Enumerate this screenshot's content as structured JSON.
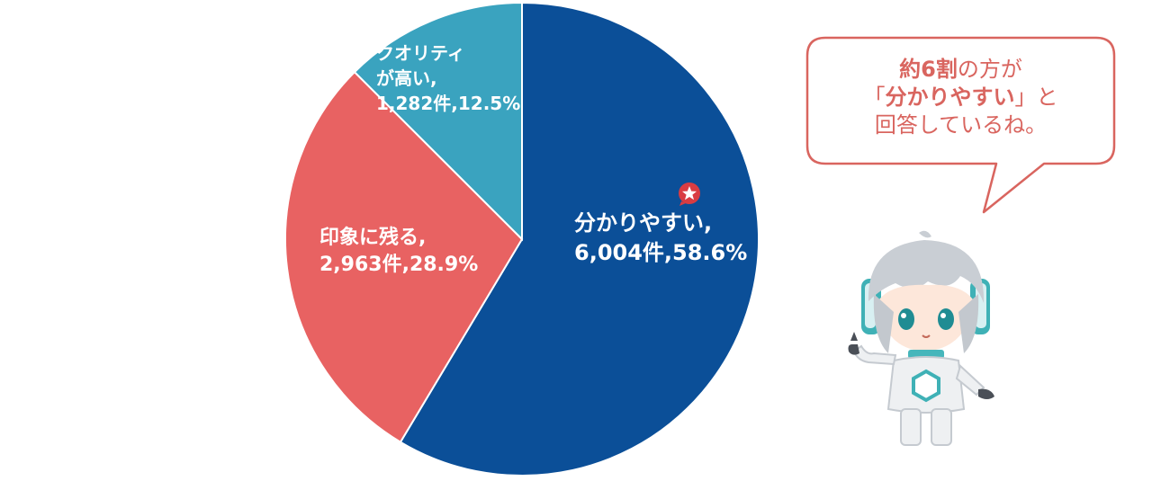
{
  "chart_data": {
    "type": "pie",
    "start_angle_deg": 0,
    "direction": "clockwise",
    "slices": [
      {
        "label": "分かりやすい",
        "count": 6004,
        "percent": 58.6,
        "count_text": "6,004件",
        "percent_text": "58.6%",
        "color": "#0b4f98"
      },
      {
        "label": "印象に残る",
        "count": 2963,
        "percent": 28.9,
        "count_text": "2,963件",
        "percent_text": "28.9%",
        "color": "#e86262"
      },
      {
        "label": "クオリティが高い",
        "count": 1282,
        "percent": 12.5,
        "count_text": "1,282件",
        "percent_text": "12.5%",
        "color": "#3aa3bf"
      }
    ],
    "data_labels": {
      "wakari": {
        "line1": "分かりやすい,",
        "line2": "6,004件,58.6%"
      },
      "insho": {
        "line1": "印象に残る,",
        "line2": "2,963件,28.9%"
      },
      "quality": {
        "line1": "クオリティ",
        "line2": "が高い,",
        "line3": "1,282件,12.5%"
      }
    }
  },
  "callout": {
    "line1_emph": "約6割",
    "line1_rest": "の方が",
    "line2_open": "「",
    "line2_emph": "分かりやすい",
    "line2_close": "」と",
    "line3": "回答しているね。",
    "color": "#d9655f"
  },
  "badge": {
    "icon": "star-icon",
    "color": "#d93c42"
  },
  "mascot": {
    "icon": "robot-mascot-icon"
  }
}
